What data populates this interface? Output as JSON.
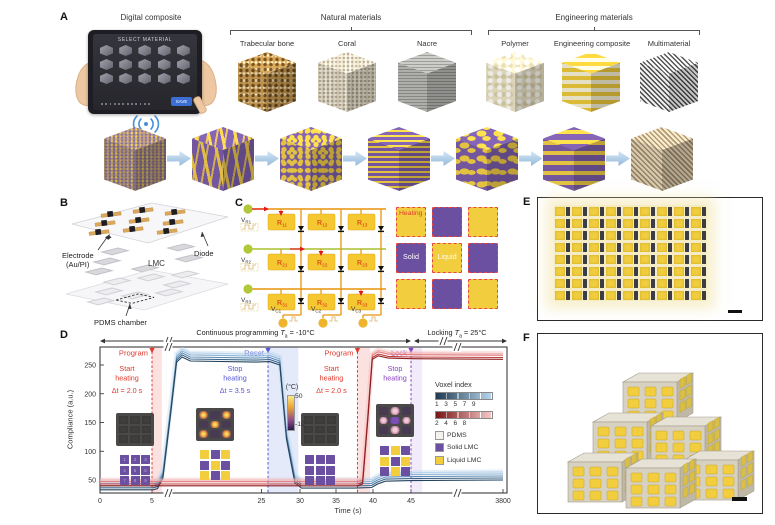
{
  "colors": {
    "voxel_purple": "#6b4fa0",
    "voxel_yellow": "#f2ce3e",
    "pdms_white": "#f4f2ef",
    "program_red": "#e03a2f",
    "reset_blue": "#5656d8",
    "lock_purple": "#8a3fc4",
    "wire_orange": "#e8940a",
    "row_green": "#a8c030",
    "node_green": "#b2c837",
    "node_yellow": "#f0b42c"
  },
  "panel_a": {
    "label": "A",
    "tablet_caption": "Digital composite",
    "tablet": {
      "screen_title": "SELECT MATERIAL",
      "save_button": "SAVE",
      "cube_rows": 3,
      "cube_cols": 5,
      "page_dots": 12
    },
    "natural_group_label": "Natural materials",
    "engineering_group_label": "Engineering materials",
    "top_cubes": [
      {
        "name": "Trabecular bone",
        "pattern": "bone",
        "x": 238
      },
      {
        "name": "Coral",
        "pattern": "coral",
        "x": 318
      },
      {
        "name": "Nacre",
        "pattern": "nacre",
        "x": 398
      },
      {
        "name": "Polymer",
        "pattern": "polymer",
        "x": 486
      },
      {
        "name": "Engineering composite",
        "pattern": "engcomp",
        "x": 562
      },
      {
        "name": "Multimaterial",
        "pattern": "multi",
        "x": 640
      }
    ],
    "bottom_cubes": [
      {
        "pattern": "mix-speckle",
        "x": 104
      },
      {
        "pattern": "mix-trab",
        "x": 192
      },
      {
        "pattern": "mix-coral",
        "x": 280
      },
      {
        "pattern": "mix-nacre",
        "x": 368
      },
      {
        "pattern": "mix-poly",
        "x": 456
      },
      {
        "pattern": "mix-comp",
        "x": 543
      },
      {
        "pattern": "mix-multi",
        "x": 631
      }
    ]
  },
  "panel_b": {
    "label": "B",
    "electrode_label_1": "Electrode",
    "electrode_label_2": "(Au/PI)",
    "diode_label": "Diode",
    "lmc_label": "LMC",
    "pdms_label": "PDMS chamber"
  },
  "panel_c": {
    "label": "C",
    "row_sources": [
      {
        "m": "V",
        "s": "R1"
      },
      {
        "m": "V",
        "s": "R2"
      },
      {
        "m": "V",
        "s": "R3"
      }
    ],
    "col_sources": [
      {
        "m": "V",
        "s": "C1"
      },
      {
        "m": "V",
        "s": "C2"
      },
      {
        "m": "V",
        "s": "C3"
      }
    ],
    "resistors": [
      {
        "m": "R",
        "s": "11"
      },
      {
        "m": "R",
        "s": "12"
      },
      {
        "m": "R",
        "s": "13"
      },
      {
        "m": "R",
        "s": "21"
      },
      {
        "m": "R",
        "s": "22"
      },
      {
        "m": "R",
        "s": "23"
      },
      {
        "m": "R",
        "s": "31"
      },
      {
        "m": "R",
        "s": "32"
      },
      {
        "m": "R",
        "s": "33"
      }
    ],
    "state_grid": {
      "pattern": [
        "Y",
        "P",
        "Y",
        "P",
        "Y",
        "P",
        "Y",
        "P",
        "Y"
      ],
      "heating_label": "Heating",
      "solid_label": "Solid",
      "liquid_label": "Liquid"
    }
  },
  "panel_e": {
    "label": "E",
    "cols": 9,
    "rows": 8
  },
  "panel_f": {
    "label": "F"
  },
  "chart_data": {
    "type": "line",
    "panel_label": "D",
    "xlabel": "Time (s)",
    "ylabel": "Compliance (a.u.)",
    "x_ticks": [
      0,
      5,
      25,
      30,
      35,
      40,
      45,
      3800
    ],
    "y_ticks": [
      50,
      100,
      150,
      200,
      250
    ],
    "ylim": [
      20,
      285
    ],
    "axis_break_times": [
      [
        7,
        23
      ],
      [
        50,
        3700
      ]
    ],
    "grid": false,
    "top_spans": [
      {
        "prefix": "Continuous programming ",
        "t_sym": "T",
        "t_sub": "a",
        "suffix": " = -10°C",
        "from_t": 0,
        "to_t": 45
      },
      {
        "prefix": "Locking ",
        "t_sym": "T",
        "t_sub": "a",
        "suffix": " = 25°C",
        "from_t": 45,
        "to_t": 3800
      }
    ],
    "phases": [
      {
        "name": "Program",
        "time": 5,
        "color": "#e03a2f",
        "note": [
          "Start",
          "heating"
        ],
        "delta": "Δt = 2.0 s",
        "band_to": 6.8,
        "band_color": "rgba(240,120,120,0.22)"
      },
      {
        "name": "Reset",
        "time": 26.2,
        "color": "#5656d8",
        "note": [
          "Stop",
          "heating"
        ],
        "delta": "Δt = 3.5 s",
        "band_to": 29.8,
        "band_color": "rgba(120,150,230,0.20)"
      },
      {
        "name": "Program",
        "time": 37.9,
        "color": "#e03a2f",
        "note": [
          "Start",
          "heating"
        ],
        "delta": "Δt = 2.0 s",
        "band_to": 39.6,
        "band_color": "rgba(240,120,120,0.22)"
      },
      {
        "name": "Lock",
        "time": 45,
        "color": "#8a3fc4",
        "note": [
          "Stop",
          "heating"
        ],
        "delta": null,
        "band_to": 500,
        "band_color": "rgba(160,120,220,0.14)"
      }
    ],
    "series": [
      {
        "name": "Voxels 1,3,5,7,9",
        "trace_colors": [
          "#b9d4ea",
          "#8cb4d6",
          "#5f8cb4",
          "#3c668a",
          "#23445e"
        ],
        "value_offsets": [
          7,
          3.5,
          0,
          -3.5,
          -7
        ],
        "points": [
          [
            0,
            40
          ],
          [
            5.2,
            40
          ],
          [
            6,
            42
          ],
          [
            7,
            60
          ],
          [
            8.5,
            180
          ],
          [
            9.5,
            262
          ],
          [
            10.5,
            271
          ],
          [
            12,
            264
          ],
          [
            24,
            262
          ],
          [
            26.4,
            263
          ],
          [
            27.6,
            257
          ],
          [
            28.4,
            128
          ],
          [
            29.4,
            52
          ],
          [
            30.2,
            43
          ],
          [
            37.5,
            43
          ],
          [
            39.8,
            44
          ],
          [
            40.6,
            50
          ],
          [
            41.6,
            55
          ],
          [
            45,
            56
          ],
          [
            3800,
            57
          ]
        ]
      },
      {
        "name": "Voxels 2,4,6,8",
        "trace_colors": [
          "#f2b4b4",
          "#e07878",
          "#c03a3a",
          "#8c1f1f"
        ],
        "value_offsets": [
          5,
          2,
          -2,
          -5
        ],
        "points": [
          [
            0,
            45
          ],
          [
            25,
            45
          ],
          [
            37.9,
            45
          ],
          [
            38.6,
            48
          ],
          [
            39.3,
            160
          ],
          [
            39.9,
            265
          ],
          [
            40.7,
            271
          ],
          [
            42,
            267
          ],
          [
            45,
            266
          ],
          [
            3800,
            265
          ]
        ]
      }
    ],
    "colorbar": {
      "label": "(°C)",
      "max": "50",
      "min": "-10"
    },
    "legend": {
      "title": "Voxel index",
      "odd_ticks": "1 3 5 7 9",
      "even_ticks": "2 4 6 8",
      "odd_gradient": [
        "#1e3a52",
        "#b9d8ee"
      ],
      "even_gradient": [
        "#7a1414",
        "#f6caca"
      ],
      "items": [
        {
          "label": "PDMS",
          "color": "#f4f2ef"
        },
        {
          "label": "Solid LMC",
          "color": "#6b4fa0"
        },
        {
          "label": "Liquid LMC",
          "color": "#f2ce3e"
        }
      ]
    },
    "insets": [
      {
        "x": 58,
        "y": 85,
        "thermal": "cold",
        "grid": [
          "P",
          "P",
          "P",
          "P",
          "P",
          "P",
          "P",
          "P",
          "P"
        ],
        "numbers": [
          "1",
          "2",
          "3",
          "4",
          "5",
          "6",
          "7",
          "8",
          "9"
        ]
      },
      {
        "x": 138,
        "y": 80,
        "thermal": "hot-x",
        "grid": [
          "Y",
          "P",
          "Y",
          "P",
          "Y",
          "P",
          "Y",
          "P",
          "Y"
        ],
        "numbers": null
      },
      {
        "x": 243,
        "y": 85,
        "thermal": "cold",
        "grid": [
          "P",
          "P",
          "P",
          "P",
          "P",
          "P",
          "P",
          "P",
          "P"
        ],
        "numbers": null
      },
      {
        "x": 318,
        "y": 76,
        "thermal": "hot-plus",
        "grid": [
          "P",
          "Y",
          "P",
          "Y",
          "P",
          "Y",
          "P",
          "Y",
          "P"
        ],
        "numbers": null
      }
    ]
  }
}
